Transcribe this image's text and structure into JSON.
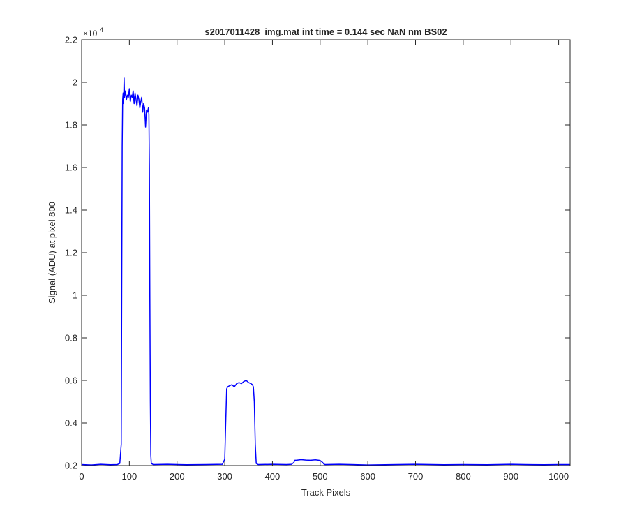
{
  "chart_data": {
    "type": "line",
    "title": "s2017011428_img.mat int time = 0.144 sec  NaN nm BS02",
    "xlabel": "Track Pixels",
    "ylabel": "Signal (ADU) at pixel 800",
    "y_exponent_label": "×10",
    "y_exponent_power": "4",
    "xlim": [
      0,
      1024
    ],
    "ylim": [
      0.2,
      2.2
    ],
    "y_multiplier": 10000,
    "x_ticks": [
      0,
      100,
      200,
      300,
      400,
      500,
      600,
      700,
      800,
      900,
      1000
    ],
    "x_tick_labels": [
      "0",
      "100",
      "200",
      "300",
      "400",
      "500",
      "600",
      "700",
      "800",
      "900",
      "1000"
    ],
    "y_ticks": [
      0.2,
      0.4,
      0.6,
      0.8,
      1.0,
      1.2,
      1.4,
      1.6,
      1.8,
      2.0,
      2.2
    ],
    "y_tick_labels": [
      "0.2",
      "0.4",
      "0.6",
      "0.8",
      "1",
      "1.2",
      "1.4",
      "1.6",
      "1.8",
      "2",
      "2.2"
    ],
    "grid": false,
    "line_color": "#0000ff",
    "series": [
      {
        "x": [
          0,
          20,
          40,
          60,
          75,
          80,
          83,
          84,
          85,
          86,
          87,
          88,
          89,
          90,
          92,
          94,
          96,
          98,
          100,
          102,
          104,
          106,
          108,
          110,
          112,
          114,
          116,
          118,
          120,
          122,
          124,
          126,
          128,
          130,
          132,
          134,
          136,
          138,
          140,
          141,
          142,
          143,
          144,
          145,
          146,
          150,
          180,
          220,
          260,
          295,
          300,
          302,
          304,
          306,
          310,
          315,
          320,
          325,
          330,
          335,
          340,
          345,
          350,
          355,
          358,
          360,
          362,
          364,
          366,
          370,
          400,
          430,
          440,
          445,
          447,
          450,
          460,
          470,
          480,
          490,
          500,
          505,
          508,
          510,
          540,
          600,
          660,
          700,
          760,
          800,
          850,
          900,
          930,
          970,
          1000,
          1024
        ],
        "y": [
          0.205,
          0.203,
          0.206,
          0.204,
          0.205,
          0.21,
          0.3,
          1.0,
          1.7,
          1.92,
          1.95,
          1.9,
          2.02,
          1.93,
          1.96,
          1.92,
          1.94,
          1.93,
          1.97,
          1.91,
          1.94,
          1.93,
          1.96,
          1.9,
          1.95,
          1.92,
          1.89,
          1.94,
          1.92,
          1.88,
          1.91,
          1.93,
          1.86,
          1.9,
          1.88,
          1.79,
          1.87,
          1.86,
          1.88,
          1.85,
          1.6,
          1.0,
          0.5,
          0.25,
          0.21,
          0.205,
          0.206,
          0.204,
          0.205,
          0.206,
          0.23,
          0.4,
          0.56,
          0.57,
          0.575,
          0.58,
          0.57,
          0.585,
          0.59,
          0.585,
          0.595,
          0.6,
          0.59,
          0.585,
          0.58,
          0.57,
          0.5,
          0.3,
          0.21,
          0.205,
          0.206,
          0.205,
          0.206,
          0.215,
          0.225,
          0.225,
          0.228,
          0.226,
          0.225,
          0.227,
          0.224,
          0.215,
          0.207,
          0.205,
          0.206,
          0.203,
          0.205,
          0.206,
          0.204,
          0.205,
          0.204,
          0.206,
          0.205,
          0.204,
          0.205,
          0.205
        ]
      }
    ]
  }
}
